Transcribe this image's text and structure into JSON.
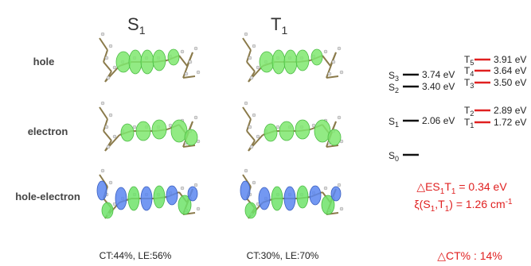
{
  "columns": [
    {
      "state": "S",
      "sub": "1",
      "caption": "CT:44%, LE:56%"
    },
    {
      "state": "T",
      "sub": "1",
      "caption": "CT:30%, LE:70%"
    }
  ],
  "rows": [
    "hole",
    "electron",
    "hole-electron"
  ],
  "energy_diagram": {
    "singlets": [
      {
        "state": "S",
        "sub": "3",
        "energy": "3.74 eV"
      },
      {
        "state": "S",
        "sub": "2",
        "energy": "3.40 eV"
      },
      {
        "state": "S",
        "sub": "1",
        "energy": "2.06 eV"
      },
      {
        "state": "S",
        "sub": "0"
      }
    ],
    "triplets": [
      {
        "state": "T",
        "sub": "5",
        "energy": "3.91 eV"
      },
      {
        "state": "T",
        "sub": "4",
        "energy": "3.64 eV"
      },
      {
        "state": "T",
        "sub": "3",
        "energy": "3.50 eV"
      },
      {
        "state": "T",
        "sub": "2",
        "energy": "2.89 eV"
      },
      {
        "state": "T",
        "sub": "1",
        "energy": "1.72 eV"
      }
    ]
  },
  "gap": {
    "a": "△ES",
    "b": "1",
    "c": "T",
    "d": "1",
    "e": " = 0.34 eV"
  },
  "soc": {
    "a": "ξ(S",
    "b": "1",
    "c": ",T",
    "d": "1",
    "e": ") = 1.26 cm",
    "f": "-1"
  },
  "delta_ct": "△CT% : 14%"
}
